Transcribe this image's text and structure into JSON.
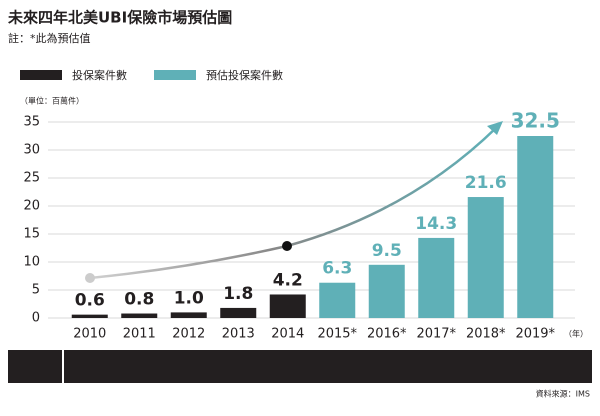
{
  "chart_data": {
    "type": "bar",
    "title": "未來四年北美UBI保險市場預估圖",
    "subtitle": "註：*此為預估值",
    "y_unit": "（單位：百萬件）",
    "x_unit": "（年）",
    "source": "資料來源：IMS",
    "categories": [
      "2010",
      "2011",
      "2012",
      "2013",
      "2014",
      "2015*",
      "2016*",
      "2017*",
      "2018*",
      "2019*"
    ],
    "series": [
      {
        "name": "投保案件數",
        "color": "#231f20",
        "values": [
          0.6,
          0.8,
          1.0,
          1.8,
          4.2,
          null,
          null,
          null,
          null,
          null
        ],
        "value_labels": [
          "0.6",
          "0.8",
          "1.0",
          "1.8",
          "4.2",
          null,
          null,
          null,
          null,
          null
        ]
      },
      {
        "name": "預估投保案件數",
        "color": "#5fb0b7",
        "values": [
          null,
          null,
          null,
          null,
          null,
          6.3,
          9.5,
          14.3,
          21.6,
          32.5
        ],
        "value_labels": [
          null,
          null,
          null,
          null,
          null,
          "6.3",
          "9.5",
          "14.3",
          "21.6",
          "32.5"
        ]
      }
    ],
    "ylim": [
      0,
      35
    ],
    "yticks": [
      0,
      5,
      10,
      15,
      20,
      25,
      30,
      35
    ],
    "grid": true
  }
}
